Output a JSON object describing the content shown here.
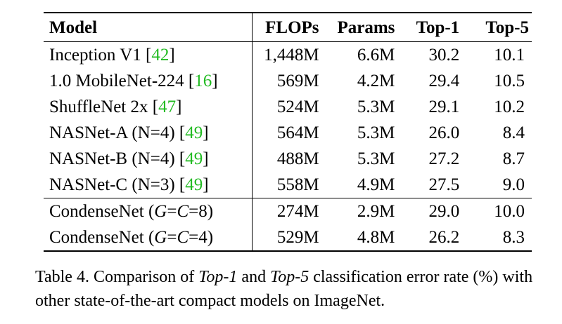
{
  "table": {
    "headers": {
      "model": "Model",
      "flops": "FLOPs",
      "params": "Params",
      "top1": "Top-1",
      "top5": "Top-5"
    },
    "rows": [
      {
        "model": "Inception V1",
        "cite": "42",
        "flops": "1,448M",
        "params": "6.6M",
        "top1": "30.2",
        "top5": "10.1"
      },
      {
        "model": "1.0 MobileNet-224",
        "cite": "16",
        "flops": "569M",
        "params": "4.2M",
        "top1": "29.4",
        "top5": "10.5"
      },
      {
        "model": "ShuffleNet 2x",
        "cite": "47",
        "flops": "524M",
        "params": "5.3M",
        "top1": "29.1",
        "top5": "10.2"
      },
      {
        "model": "NASNet-A (N=4)",
        "cite": "49",
        "flops": "564M",
        "params": "5.3M",
        "top1": "26.0",
        "top5": "8.4"
      },
      {
        "model": "NASNet-B (N=4)",
        "cite": "49",
        "flops": "488M",
        "params": "5.3M",
        "top1": "27.2",
        "top5": "8.7"
      },
      {
        "model": "NASNet-C (N=3)",
        "cite": "49",
        "flops": "558M",
        "params": "4.9M",
        "top1": "27.5",
        "top5": "9.0"
      }
    ],
    "ours": [
      {
        "model": "CondenseNet",
        "config_g": "G",
        "config_c": "C",
        "config_val": "8",
        "flops": "274M",
        "params": "2.9M",
        "top1": "29.0",
        "top5": "10.0"
      },
      {
        "model": "CondenseNet",
        "config_g": "G",
        "config_c": "C",
        "config_val": "4",
        "flops": "529M",
        "params": "4.8M",
        "top1": "26.2",
        "top5": "8.3"
      }
    ]
  },
  "caption": {
    "prefix": "Table 4. Comparison of ",
    "term1": "Top-1",
    "middle1": " and ",
    "term2": "Top-5",
    "suffix": " classification error rate (%) with other state-of-the-art compact models on ImageNet."
  },
  "colors": {
    "citation": "#22bb22",
    "text": "#000000"
  }
}
